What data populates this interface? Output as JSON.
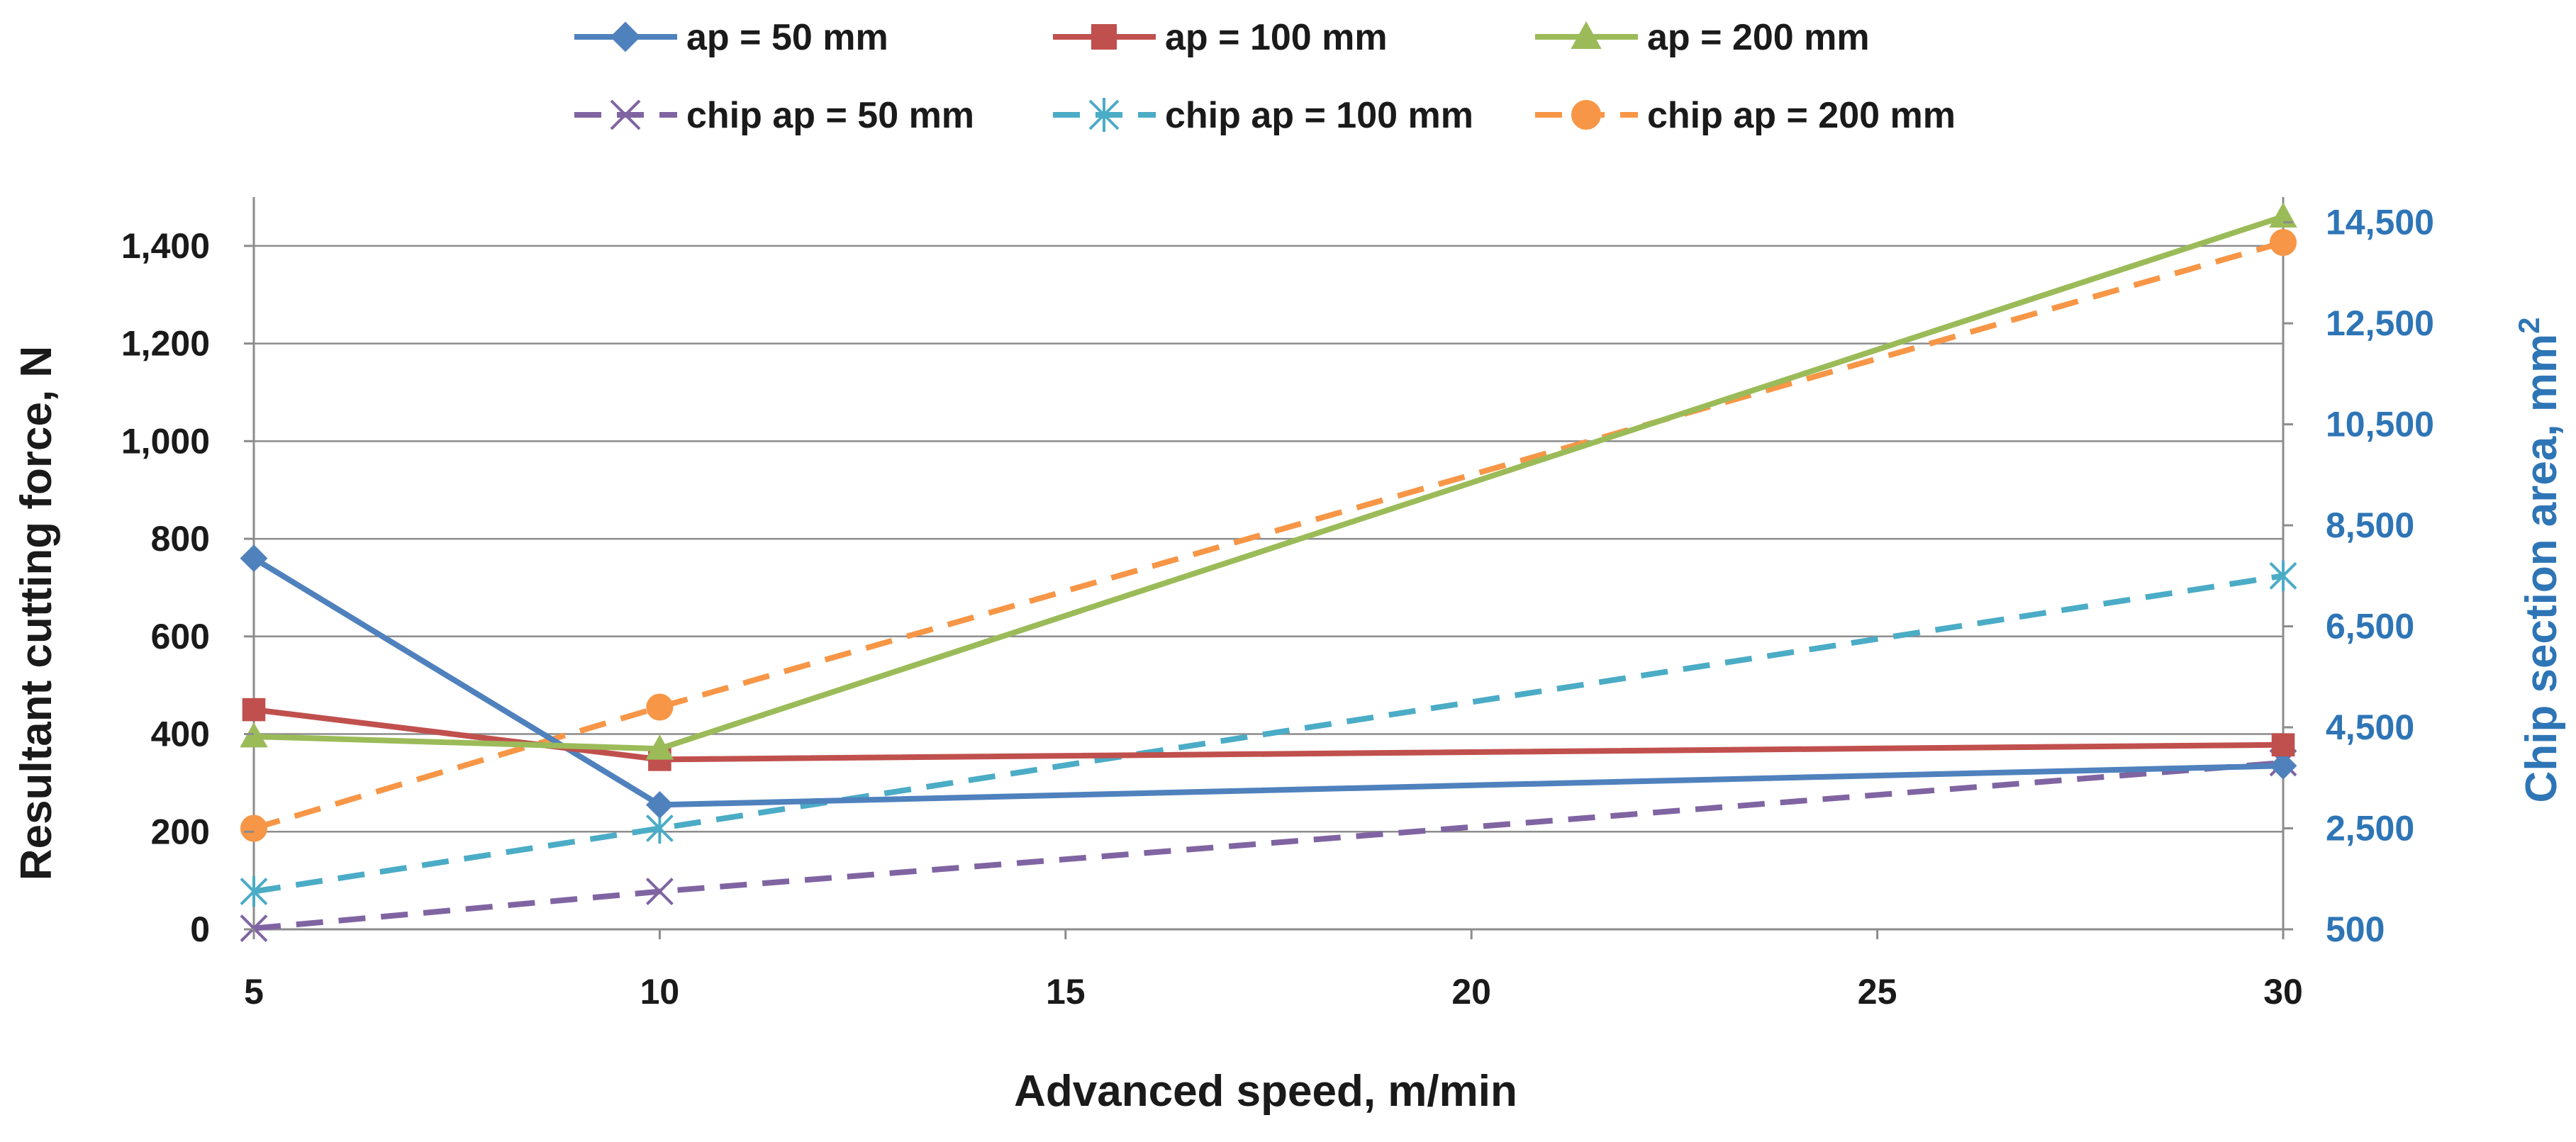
{
  "chart_data": {
    "type": "line",
    "x": [
      5,
      10,
      30
    ],
    "xticks": [
      5,
      10,
      15,
      20,
      25,
      30
    ],
    "xlim": [
      5,
      30
    ],
    "xlabel": "Advanced speed, m/min",
    "ylabel": "Resultant cutting force, N",
    "y2label": "Chip section area, mm",
    "y2label_superscript": "2",
    "ylim": [
      0,
      1500
    ],
    "yticks": [
      0,
      200,
      400,
      600,
      800,
      1000,
      1200,
      1400
    ],
    "ytick_labels": [
      "0",
      "200",
      "400",
      "600",
      "800",
      "1,000",
      "1,200",
      "1,400"
    ],
    "y2lim": [
      500,
      15000
    ],
    "y2ticks": [
      500,
      2500,
      4500,
      6500,
      8500,
      10500,
      12500,
      14500
    ],
    "y2tick_labels": [
      "500",
      "2,500",
      "4,500",
      "6,500",
      "8,500",
      "10,500",
      "12,500",
      "14,500"
    ],
    "grid": true,
    "legend_position": "top",
    "series": [
      {
        "name": "ap = 50 mm",
        "axis": "left",
        "values": [
          760,
          255,
          335
        ],
        "color": "#4f81bd",
        "marker": "diamond",
        "dash": false
      },
      {
        "name": "ap = 100 mm",
        "axis": "left",
        "values": [
          450,
          348,
          378
        ],
        "color": "#c0504d",
        "marker": "square",
        "dash": false
      },
      {
        "name": "ap = 200 mm",
        "axis": "left",
        "values": [
          395,
          370,
          1460
        ],
        "color": "#9bbb59",
        "marker": "triangle",
        "dash": false
      },
      {
        "name": "chip ap = 50 mm",
        "axis": "right",
        "values": [
          520,
          1250,
          3800
        ],
        "color": "#8064a2",
        "marker": "x",
        "dash": true
      },
      {
        "name": "chip ap = 100 mm",
        "axis": "right",
        "values": [
          1250,
          2500,
          7500
        ],
        "color": "#4bacc6",
        "marker": "star",
        "dash": true
      },
      {
        "name": "chip ap = 200 mm",
        "axis": "right",
        "values": [
          2500,
          4900,
          14100
        ],
        "color": "#f79646",
        "marker": "circle",
        "dash": true
      }
    ]
  }
}
